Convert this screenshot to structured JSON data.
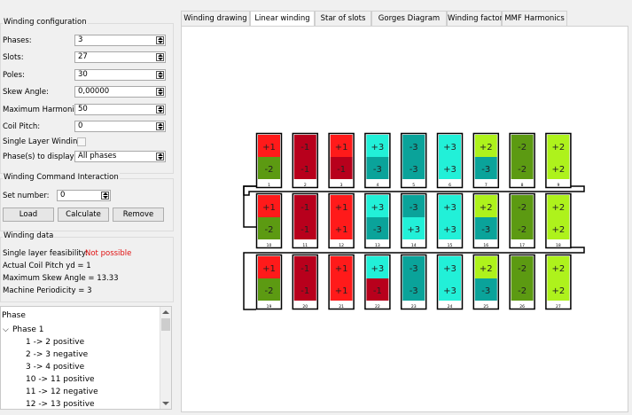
{
  "config": {
    "title": "Winding configuration",
    "fields": [
      {
        "label": "Phases:",
        "value": "3"
      },
      {
        "label": "Slots:",
        "value": "27"
      },
      {
        "label": "Poles:",
        "value": "30"
      },
      {
        "label": "Skew Angle:",
        "value": "0,00000"
      },
      {
        "label": "Maximum Harmonic:",
        "value": "50"
      },
      {
        "label": "Coil Pitch:",
        "value": "0"
      }
    ],
    "single_layer_label": "Single Layer Winding:",
    "phases_display_label": "Phase(s) to display:",
    "phases_display_value": "All phases"
  },
  "command": {
    "title": "Winding Command Interaction",
    "set_number_label": "Set number:",
    "set_number_value": "0",
    "load_label": "Load",
    "calculate_label": "Calculate",
    "remove_label": "Remove"
  },
  "winding_data": {
    "title": "Winding data",
    "feasibility_label": "Single layer feasibility:",
    "feasibility_value": "Not possible",
    "lines": [
      "Actual Coil Pitch yd = 1",
      "Maximum Skew Angle =  13.33",
      "Machine Periodicity = 3"
    ]
  },
  "tree": {
    "header": "Phase",
    "phase": "Phase 1",
    "items": [
      "1 -> 2 positive",
      "2 -> 3 negative",
      "3 -> 4 positive",
      "10 -> 11 positive",
      "11 -> 12 negative",
      "12 -> 13 positive"
    ]
  },
  "tabs": [
    "Winding drawing",
    "Linear winding",
    "Star of slots",
    "Gorges Diagram",
    "Winding factor",
    "MMF Harmonics"
  ],
  "active_tab": 1,
  "colors": {
    "p1_pos": "#ff1a1a",
    "p1_neg": "#b8001c",
    "p3_pos": "#22f0d8",
    "p3_neg": "#0aa39a",
    "p2_pos": "#aef21c",
    "p2_neg": "#5c9a12"
  },
  "linear_winding": {
    "rows": [
      {
        "slots": [
          1,
          2,
          3,
          4,
          5,
          6,
          7,
          8,
          9
        ],
        "top": [
          "+1",
          "-1",
          "+1",
          "+3",
          "-3",
          "+3",
          "+2",
          "-2",
          "+2"
        ],
        "bottom": [
          "-2",
          "-1",
          "-1",
          "-3",
          "-3",
          "+3",
          "-3",
          "-2",
          "+2"
        ]
      },
      {
        "slots": [
          10,
          11,
          12,
          13,
          14,
          15,
          16,
          17,
          18
        ],
        "top": [
          "+1",
          "-1",
          "+1",
          "+3",
          "-3",
          "+3",
          "+2",
          "-2",
          "+2"
        ],
        "bottom": [
          "-2",
          "-1",
          "+1",
          "-3",
          "+3",
          "+3",
          "-3",
          "-2",
          "+2"
        ]
      },
      {
        "slots": [
          19,
          20,
          21,
          22,
          23,
          24,
          25,
          26,
          27
        ],
        "top": [
          "+1",
          "-1",
          "+1",
          "+3",
          "-3",
          "+3",
          "+2",
          "-2",
          "+2"
        ],
        "bottom": [
          "-2",
          "-1",
          "+1",
          "-1",
          "-3",
          "+3",
          "-3",
          "-2",
          "+2"
        ]
      }
    ]
  }
}
